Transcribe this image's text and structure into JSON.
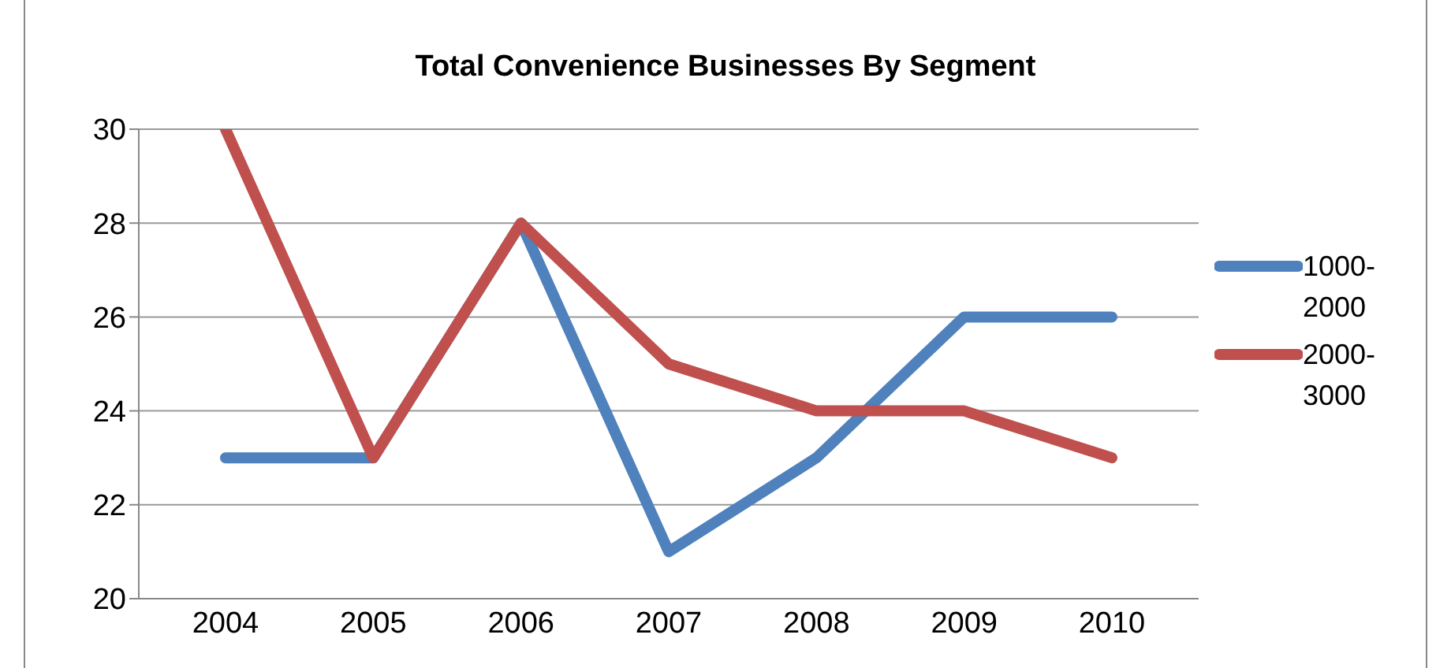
{
  "chart_data": {
    "type": "line",
    "title": "Total Convenience Businesses By Segment",
    "categories": [
      "2004",
      "2005",
      "2006",
      "2007",
      "2008",
      "2009",
      "2010"
    ],
    "series": [
      {
        "name": "1000-2000",
        "color": "#4f81bd",
        "values": [
          23,
          23,
          28,
          21,
          23,
          26,
          26
        ]
      },
      {
        "name": "2000-3000",
        "color": "#c0504d",
        "values": [
          30,
          23,
          28,
          25,
          24,
          24,
          23
        ]
      }
    ],
    "ylim": [
      20,
      30
    ],
    "yticks": [
      20,
      22,
      24,
      26,
      28,
      30
    ],
    "grid": "y",
    "legend": "right",
    "marker": "none",
    "line_style": "solid"
  }
}
